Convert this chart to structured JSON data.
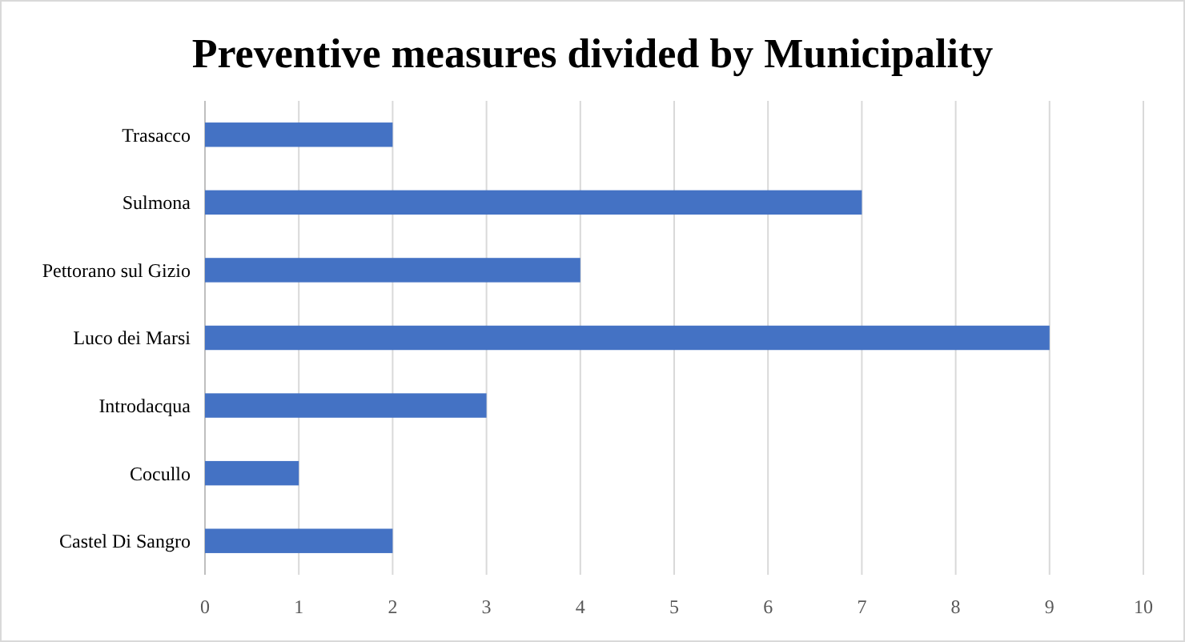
{
  "chart_data": {
    "type": "bar",
    "orientation": "horizontal",
    "title": "Preventive measures divided by Municipality",
    "categories": [
      "Trasacco",
      "Sulmona",
      "Pettorano sul Gizio",
      "Luco dei Marsi",
      "Introdacqua",
      "Cocullo",
      "Castel Di Sangro"
    ],
    "values": [
      2,
      7,
      4,
      9,
      3,
      1,
      2
    ],
    "color": "#4472c4",
    "xlim": [
      0,
      10
    ],
    "xticks": [
      0,
      1,
      2,
      3,
      4,
      5,
      6,
      7,
      8,
      9,
      10
    ],
    "grid": "x"
  }
}
